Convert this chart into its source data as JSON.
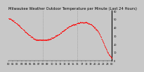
{
  "title": "Milwaukee Weather Outdoor Temperature per Minute (Last 24 Hours)",
  "background_color": "#c8c8c8",
  "plot_bg_color": "#c8c8c8",
  "line_color": "#ff0000",
  "grid_color": "#aaaaaa",
  "y_label_color": "#000000",
  "ylim": [
    0,
    60
  ],
  "yticks": [
    0,
    10,
    20,
    30,
    40,
    50,
    60
  ],
  "xlim": [
    0,
    1440
  ],
  "title_fontsize": 3.8,
  "tick_fontsize": 2.5,
  "vlines_x": [
    480,
    960
  ],
  "temp_curve": {
    "x": [
      0,
      30,
      60,
      90,
      120,
      150,
      180,
      210,
      240,
      270,
      300,
      330,
      360,
      390,
      420,
      450,
      480,
      510,
      540,
      570,
      600,
      630,
      660,
      690,
      720,
      750,
      780,
      810,
      840,
      870,
      900,
      930,
      960,
      990,
      1020,
      1050,
      1080,
      1110,
      1140,
      1170,
      1200,
      1230,
      1260,
      1290,
      1320,
      1350,
      1380,
      1410,
      1440
    ],
    "y": [
      51,
      50,
      48,
      46,
      44,
      42,
      39,
      37,
      34,
      32,
      30,
      28,
      26,
      25,
      25,
      25,
      25,
      25,
      25,
      26,
      27,
      28,
      30,
      31,
      33,
      35,
      37,
      39,
      41,
      42,
      43,
      44,
      45,
      46,
      46,
      46,
      46,
      45,
      44,
      42,
      40,
      37,
      33,
      28,
      22,
      16,
      10,
      6,
      3
    ]
  }
}
